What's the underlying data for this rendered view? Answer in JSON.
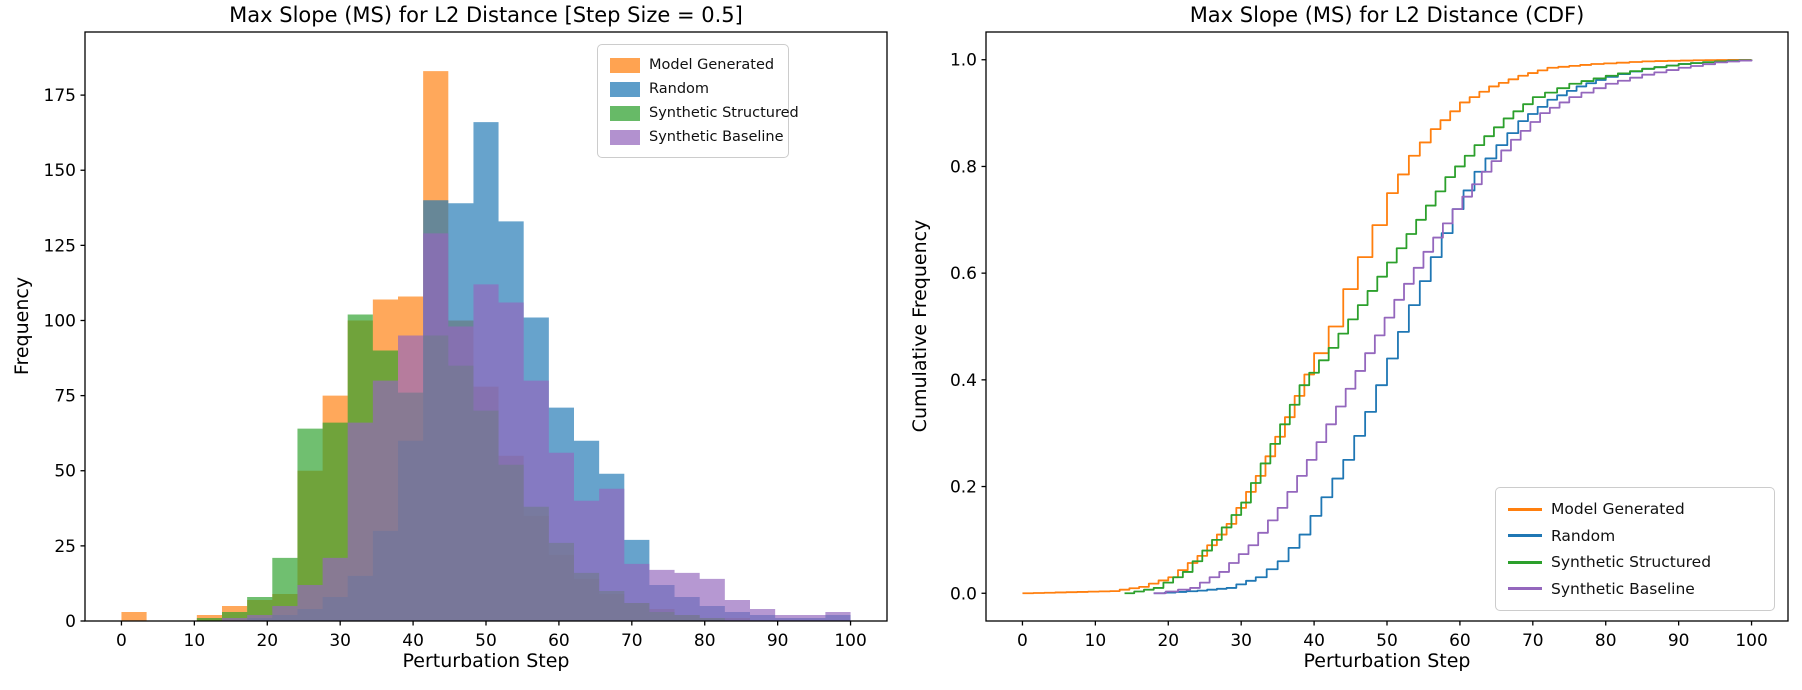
{
  "figure": {
    "background": "#ffffff",
    "text_color": "#000000",
    "spine_color": "#000000"
  },
  "chart_data": [
    {
      "type": "bar",
      "subtype": "overlapping-histogram",
      "title": "Max Slope (MS) for L2 Distance [Step Size = 0.5]",
      "xlabel": "Perturbation Step",
      "ylabel": "Frequency",
      "grid": false,
      "alpha": 0.68,
      "legend_position": "upper right",
      "xlim": [
        -5,
        105
      ],
      "ylim": [
        0,
        196
      ],
      "x_ticks": [
        0,
        10,
        20,
        30,
        40,
        50,
        60,
        70,
        80,
        90,
        100
      ],
      "x_tick_labels": [
        "0",
        "10",
        "20",
        "30",
        "40",
        "50",
        "60",
        "70",
        "80",
        "90",
        "100"
      ],
      "y_ticks": [
        0,
        25,
        50,
        75,
        100,
        125,
        150,
        175
      ],
      "y_tick_labels": [
        "0",
        "25",
        "50",
        "75",
        "100",
        "125",
        "150",
        "175"
      ],
      "bin_edges": [
        0,
        3.45,
        6.9,
        10.34,
        13.79,
        17.24,
        20.69,
        24.14,
        27.59,
        31.03,
        34.48,
        37.93,
        41.38,
        44.83,
        48.28,
        51.72,
        55.17,
        58.62,
        62.07,
        65.52,
        68.97,
        72.41,
        75.86,
        79.31,
        82.76,
        86.21,
        89.66,
        93.1,
        96.55,
        100
      ],
      "series": [
        {
          "name": "Model Generated",
          "color": "#ff7f0e",
          "values": [
            3,
            0,
            0,
            2,
            5,
            7,
            9,
            50,
            75,
            100,
            107,
            108,
            183,
            100,
            78,
            55,
            35,
            22,
            14,
            9,
            6,
            4,
            2,
            1,
            1,
            0,
            0,
            0,
            0
          ]
        },
        {
          "name": "Random",
          "color": "#1f77b4",
          "values": [
            0,
            0,
            0,
            0,
            0,
            1,
            2,
            4,
            8,
            15,
            30,
            60,
            140,
            139,
            166,
            133,
            101,
            71,
            60,
            49,
            27,
            12,
            8,
            5,
            3,
            2,
            1,
            1,
            2
          ]
        },
        {
          "name": "Synthetic Structured",
          "color": "#2ca02c",
          "values": [
            0,
            0,
            0,
            1,
            3,
            8,
            21,
            64,
            66,
            102,
            90,
            76,
            95,
            85,
            70,
            52,
            38,
            26,
            16,
            10,
            6,
            3,
            2,
            1,
            0,
            0,
            0,
            0,
            0
          ]
        },
        {
          "name": "Synthetic Baseline",
          "color": "#9467bd",
          "values": [
            0,
            0,
            0,
            0,
            1,
            2,
            5,
            12,
            21,
            66,
            80,
            95,
            129,
            98,
            112,
            106,
            80,
            56,
            40,
            44,
            19,
            17,
            16,
            14,
            7,
            4,
            2,
            2,
            3
          ]
        }
      ]
    },
    {
      "type": "line",
      "subtype": "cdf-step",
      "title": "Max Slope (MS) for L2 Distance (CDF)",
      "xlabel": "Perturbation Step",
      "ylabel": "Cumulative Frequency",
      "grid": false,
      "line_width": 1.8,
      "legend_position": "lower right",
      "xlim": [
        -5,
        105
      ],
      "ylim": [
        -0.052,
        1.052
      ],
      "x_ticks": [
        0,
        10,
        20,
        30,
        40,
        50,
        60,
        70,
        80,
        90,
        100
      ],
      "x_tick_labels": [
        "0",
        "10",
        "20",
        "30",
        "40",
        "50",
        "60",
        "70",
        "80",
        "90",
        "100"
      ],
      "y_ticks": [
        0.0,
        0.2,
        0.4,
        0.6,
        0.8,
        1.0
      ],
      "y_tick_labels": [
        "0.0",
        "0.2",
        "0.4",
        "0.6",
        "0.8",
        "1.0"
      ],
      "series": [
        {
          "name": "Model Generated",
          "color": "#ff7f0e",
          "points": [
            [
              0,
              0
            ],
            [
              12,
              0.004
            ],
            [
              16,
              0.012
            ],
            [
              20,
              0.03
            ],
            [
              24,
              0.07
            ],
            [
              28,
              0.13
            ],
            [
              32,
              0.22
            ],
            [
              36,
              0.33
            ],
            [
              40,
              0.45
            ],
            [
              42,
              0.5
            ],
            [
              44,
              0.57
            ],
            [
              46,
              0.63
            ],
            [
              48,
              0.69
            ],
            [
              50,
              0.75
            ],
            [
              53,
              0.82
            ],
            [
              56,
              0.87
            ],
            [
              60,
              0.92
            ],
            [
              64,
              0.95
            ],
            [
              68,
              0.97
            ],
            [
              72,
              0.985
            ],
            [
              78,
              0.992
            ],
            [
              85,
              0.997
            ],
            [
              92,
              0.999
            ],
            [
              100,
              1.0
            ]
          ]
        },
        {
          "name": "Random",
          "color": "#1f77b4",
          "points": [
            [
              18,
              0
            ],
            [
              24,
              0.005
            ],
            [
              28,
              0.01
            ],
            [
              32,
              0.03
            ],
            [
              35,
              0.06
            ],
            [
              38,
              0.11
            ],
            [
              41,
              0.18
            ],
            [
              44,
              0.25
            ],
            [
              47,
              0.34
            ],
            [
              50,
              0.44
            ],
            [
              53,
              0.54
            ],
            [
              56,
              0.63
            ],
            [
              59,
              0.72
            ],
            [
              62,
              0.79
            ],
            [
              65,
              0.84
            ],
            [
              68,
              0.885
            ],
            [
              72,
              0.925
            ],
            [
              76,
              0.95
            ],
            [
              80,
              0.968
            ],
            [
              85,
              0.983
            ],
            [
              90,
              0.992
            ],
            [
              95,
              0.997
            ],
            [
              100,
              1.0
            ]
          ]
        },
        {
          "name": "Synthetic Structured",
          "color": "#2ca02c",
          "points": [
            [
              14,
              0
            ],
            [
              18,
              0.01
            ],
            [
              22,
              0.04
            ],
            [
              26,
              0.1
            ],
            [
              30,
              0.17
            ],
            [
              34,
              0.28
            ],
            [
              38,
              0.39
            ],
            [
              42,
              0.46
            ],
            [
              46,
              0.54
            ],
            [
              50,
              0.62
            ],
            [
              54,
              0.7
            ],
            [
              58,
              0.78
            ],
            [
              62,
              0.84
            ],
            [
              66,
              0.89
            ],
            [
              70,
              0.93
            ],
            [
              75,
              0.955
            ],
            [
              80,
              0.97
            ],
            [
              85,
              0.983
            ],
            [
              90,
              0.992
            ],
            [
              95,
              0.997
            ],
            [
              100,
              1.0
            ]
          ]
        },
        {
          "name": "Synthetic Baseline",
          "color": "#9467bd",
          "points": [
            [
              18,
              0
            ],
            [
              23,
              0.01
            ],
            [
              27,
              0.04
            ],
            [
              31,
              0.09
            ],
            [
              35,
              0.16
            ],
            [
              39,
              0.25
            ],
            [
              43,
              0.35
            ],
            [
              47,
              0.45
            ],
            [
              51,
              0.55
            ],
            [
              55,
              0.64
            ],
            [
              59,
              0.72
            ],
            [
              63,
              0.79
            ],
            [
              67,
              0.85
            ],
            [
              71,
              0.9
            ],
            [
              75,
              0.93
            ],
            [
              80,
              0.955
            ],
            [
              85,
              0.972
            ],
            [
              90,
              0.985
            ],
            [
              95,
              0.995
            ],
            [
              100,
              1.0
            ]
          ]
        }
      ]
    }
  ]
}
